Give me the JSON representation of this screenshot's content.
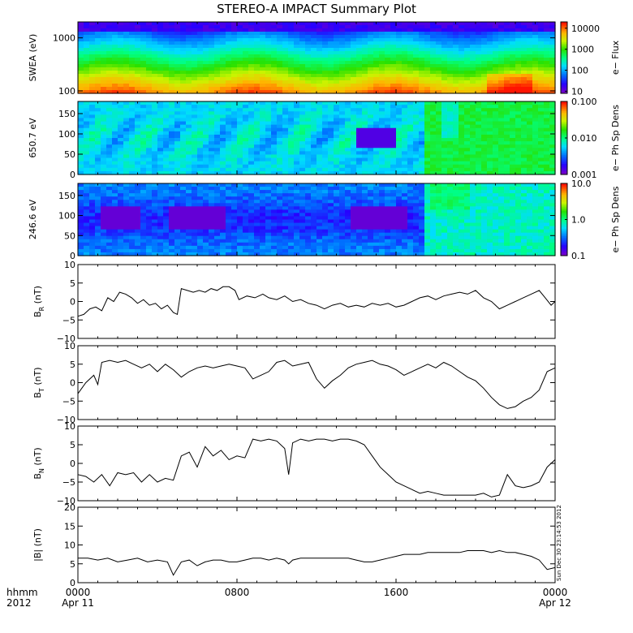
{
  "chart_data": {
    "type": "summary_plot",
    "title": "STEREO-A IMPACT Summary Plot",
    "x": {
      "label_line1": "hhmm",
      "label_line2": "2012",
      "range_hours": [
        0,
        24
      ],
      "ticks": [
        {
          "h": 0,
          "top": "0000",
          "bottom": "Apr 11"
        },
        {
          "h": 8,
          "top": "0800",
          "bottom": ""
        },
        {
          "h": 16,
          "top": "1600",
          "bottom": ""
        },
        {
          "h": 24,
          "top": "0000",
          "bottom": "Apr 12"
        }
      ]
    },
    "spectrograms": [
      {
        "id": "swea",
        "ylabel": "SWEA (eV)",
        "ylog": true,
        "yrange": [
          90,
          2000
        ],
        "yticks": [
          100,
          1000
        ],
        "ytick_labels": [
          "100",
          "1000"
        ],
        "colorbar_label": "e− Flux",
        "colorbar_ticks": [
          10,
          100,
          1000,
          10000
        ],
        "colorbar_tick_labels": [
          "10",
          "100",
          "1000",
          "10000"
        ],
        "colorbar_range_log10": [
          0.9,
          4.3
        ]
      },
      {
        "id": "pad650",
        "ylabel": "650.7 eV",
        "ylog": false,
        "yrange": [
          0,
          180
        ],
        "yticks": [
          0,
          50,
          100,
          150
        ],
        "ytick_labels": [
          "0",
          "50",
          "100",
          "150"
        ],
        "colorbar_label": "e− Ph Sp Dens",
        "colorbar_ticks": [
          0.001,
          0.01,
          0.1
        ],
        "colorbar_tick_labels": [
          "0.001",
          "0.010",
          "0.100"
        ],
        "colorbar_range_log10": [
          -3,
          -1
        ]
      },
      {
        "id": "pad246",
        "ylabel": "246.6 eV",
        "ylog": false,
        "yrange": [
          0,
          180
        ],
        "yticks": [
          0,
          50,
          100,
          150
        ],
        "ytick_labels": [
          "0",
          "50",
          "100",
          "150"
        ],
        "colorbar_label": "e− Ph Sp Dens",
        "colorbar_ticks": [
          0.1,
          1.0,
          10.0
        ],
        "colorbar_tick_labels": [
          "0.1",
          "1.0",
          "10.0"
        ],
        "colorbar_range_log10": [
          -1,
          1
        ]
      }
    ],
    "series": [
      {
        "id": "br",
        "ylabel_main": "B",
        "ylabel_sub": "R",
        "ylabel_unit": " (nT)",
        "yrange": [
          -10,
          10
        ],
        "yticks": [
          -10,
          -5,
          0,
          5,
          10
        ],
        "ytick_labels": [
          "−10",
          "−5",
          "0",
          "5",
          "10"
        ],
        "zero_line": false,
        "points": [
          [
            0,
            -4
          ],
          [
            0.3,
            -3.5
          ],
          [
            0.6,
            -2
          ],
          [
            0.9,
            -1.5
          ],
          [
            1.2,
            -2.5
          ],
          [
            1.5,
            1
          ],
          [
            1.8,
            0
          ],
          [
            2.1,
            2.5
          ],
          [
            2.4,
            2
          ],
          [
            2.7,
            1
          ],
          [
            3,
            -0.5
          ],
          [
            3.3,
            0.5
          ],
          [
            3.6,
            -1
          ],
          [
            3.9,
            -0.5
          ],
          [
            4.2,
            -2
          ],
          [
            4.5,
            -1
          ],
          [
            4.8,
            -3
          ],
          [
            5.0,
            -3.5
          ],
          [
            5.2,
            3.5
          ],
          [
            5.5,
            3
          ],
          [
            5.8,
            2.5
          ],
          [
            6.1,
            3
          ],
          [
            6.4,
            2.5
          ],
          [
            6.7,
            3.5
          ],
          [
            7.0,
            3
          ],
          [
            7.3,
            4
          ],
          [
            7.6,
            4
          ],
          [
            7.9,
            3
          ],
          [
            8.1,
            0.5
          ],
          [
            8.5,
            1.5
          ],
          [
            8.9,
            1
          ],
          [
            9.3,
            2
          ],
          [
            9.6,
            1
          ],
          [
            10.0,
            0.5
          ],
          [
            10.4,
            1.5
          ],
          [
            10.8,
            0
          ],
          [
            11.2,
            0.5
          ],
          [
            11.6,
            -0.5
          ],
          [
            12.0,
            -1
          ],
          [
            12.4,
            -2
          ],
          [
            12.8,
            -1
          ],
          [
            13.2,
            -0.5
          ],
          [
            13.6,
            -1.5
          ],
          [
            14.0,
            -1
          ],
          [
            14.4,
            -1.5
          ],
          [
            14.8,
            -0.5
          ],
          [
            15.2,
            -1
          ],
          [
            15.6,
            -0.5
          ],
          [
            16.0,
            -1.5
          ],
          [
            16.4,
            -1
          ],
          [
            16.8,
            0
          ],
          [
            17.2,
            1
          ],
          [
            17.6,
            1.5
          ],
          [
            18.0,
            0.5
          ],
          [
            18.4,
            1.5
          ],
          [
            18.8,
            2
          ],
          [
            19.2,
            2.5
          ],
          [
            19.6,
            2
          ],
          [
            20.0,
            3
          ],
          [
            20.4,
            1
          ],
          [
            20.8,
            0
          ],
          [
            21.2,
            -2
          ],
          [
            21.6,
            -1
          ],
          [
            22.0,
            0
          ],
          [
            22.4,
            1
          ],
          [
            22.8,
            2
          ],
          [
            23.2,
            3
          ],
          [
            23.5,
            1
          ],
          [
            23.8,
            -1
          ],
          [
            24.0,
            0
          ]
        ]
      },
      {
        "id": "bt",
        "ylabel_main": "B",
        "ylabel_sub": "T",
        "ylabel_unit": " (nT)",
        "yrange": [
          -10,
          10
        ],
        "yticks": [
          -10,
          -5,
          0,
          5,
          10
        ],
        "ytick_labels": [
          "−10",
          "−5",
          "0",
          "5",
          "10"
        ],
        "zero_line": false,
        "points": [
          [
            0,
            -3
          ],
          [
            0.4,
            0
          ],
          [
            0.8,
            2
          ],
          [
            1.0,
            -0.5
          ],
          [
            1.2,
            5.5
          ],
          [
            1.6,
            6
          ],
          [
            2.0,
            5.5
          ],
          [
            2.4,
            6
          ],
          [
            2.8,
            5
          ],
          [
            3.2,
            4
          ],
          [
            3.6,
            5
          ],
          [
            4.0,
            3
          ],
          [
            4.4,
            5
          ],
          [
            4.8,
            3.5
          ],
          [
            5.2,
            1.5
          ],
          [
            5.6,
            3
          ],
          [
            6.0,
            4
          ],
          [
            6.4,
            4.5
          ],
          [
            6.8,
            4
          ],
          [
            7.2,
            4.5
          ],
          [
            7.6,
            5
          ],
          [
            8.0,
            4.5
          ],
          [
            8.4,
            4
          ],
          [
            8.8,
            1
          ],
          [
            9.2,
            2
          ],
          [
            9.6,
            3
          ],
          [
            10.0,
            5.5
          ],
          [
            10.4,
            6
          ],
          [
            10.8,
            4.5
          ],
          [
            11.2,
            5
          ],
          [
            11.6,
            5.5
          ],
          [
            12.0,
            1
          ],
          [
            12.4,
            -1.5
          ],
          [
            12.8,
            0.5
          ],
          [
            13.2,
            2
          ],
          [
            13.6,
            4
          ],
          [
            14.0,
            5
          ],
          [
            14.4,
            5.5
          ],
          [
            14.8,
            6
          ],
          [
            15.2,
            5
          ],
          [
            15.6,
            4.5
          ],
          [
            16.0,
            3.5
          ],
          [
            16.4,
            2
          ],
          [
            16.8,
            3
          ],
          [
            17.2,
            4
          ],
          [
            17.6,
            5
          ],
          [
            18.0,
            4
          ],
          [
            18.4,
            5.5
          ],
          [
            18.8,
            4.5
          ],
          [
            19.2,
            3
          ],
          [
            19.6,
            1.5
          ],
          [
            20.0,
            0.5
          ],
          [
            20.4,
            -1.5
          ],
          [
            20.8,
            -4
          ],
          [
            21.2,
            -6
          ],
          [
            21.6,
            -7
          ],
          [
            22.0,
            -6.5
          ],
          [
            22.4,
            -5
          ],
          [
            22.8,
            -4
          ],
          [
            23.2,
            -2
          ],
          [
            23.6,
            3
          ],
          [
            24.0,
            4
          ]
        ]
      },
      {
        "id": "bn",
        "ylabel_main": "B",
        "ylabel_sub": "N",
        "ylabel_unit": " (nT)",
        "yrange": [
          -10,
          10
        ],
        "yticks": [
          -10,
          -5,
          0,
          5,
          10
        ],
        "ytick_labels": [
          "−10",
          "−5",
          "0",
          "5",
          "10"
        ],
        "zero_line": false,
        "points": [
          [
            0,
            -3
          ],
          [
            0.4,
            -3.5
          ],
          [
            0.8,
            -5
          ],
          [
            1.2,
            -3
          ],
          [
            1.6,
            -6
          ],
          [
            2.0,
            -2.5
          ],
          [
            2.4,
            -3
          ],
          [
            2.8,
            -2.5
          ],
          [
            3.2,
            -5
          ],
          [
            3.6,
            -3
          ],
          [
            4.0,
            -5
          ],
          [
            4.4,
            -4
          ],
          [
            4.8,
            -4.5
          ],
          [
            5.2,
            2
          ],
          [
            5.6,
            3
          ],
          [
            6.0,
            -1
          ],
          [
            6.4,
            4.5
          ],
          [
            6.8,
            2
          ],
          [
            7.2,
            3.5
          ],
          [
            7.6,
            1
          ],
          [
            8.0,
            2
          ],
          [
            8.4,
            1.5
          ],
          [
            8.8,
            6.5
          ],
          [
            9.2,
            6
          ],
          [
            9.6,
            6.5
          ],
          [
            10.0,
            6
          ],
          [
            10.4,
            4
          ],
          [
            10.6,
            -3
          ],
          [
            10.8,
            5.5
          ],
          [
            11.2,
            6.5
          ],
          [
            11.6,
            6
          ],
          [
            12.0,
            6.5
          ],
          [
            12.4,
            6.5
          ],
          [
            12.8,
            6
          ],
          [
            13.2,
            6.5
          ],
          [
            13.6,
            6.5
          ],
          [
            14.0,
            6
          ],
          [
            14.4,
            5
          ],
          [
            14.8,
            2
          ],
          [
            15.2,
            -1
          ],
          [
            15.6,
            -3
          ],
          [
            16.0,
            -5
          ],
          [
            16.4,
            -6
          ],
          [
            16.8,
            -7
          ],
          [
            17.2,
            -8
          ],
          [
            17.6,
            -7.5
          ],
          [
            18.0,
            -8
          ],
          [
            18.4,
            -8.5
          ],
          [
            18.8,
            -8.5
          ],
          [
            19.2,
            -8.5
          ],
          [
            19.6,
            -8.5
          ],
          [
            20.0,
            -8.5
          ],
          [
            20.4,
            -8
          ],
          [
            20.8,
            -9
          ],
          [
            21.2,
            -8.5
          ],
          [
            21.6,
            -3
          ],
          [
            22.0,
            -6
          ],
          [
            22.4,
            -6.5
          ],
          [
            22.8,
            -6
          ],
          [
            23.2,
            -5
          ],
          [
            23.6,
            -1
          ],
          [
            24.0,
            1
          ]
        ]
      },
      {
        "id": "btot",
        "ylabel_main": "|B|",
        "ylabel_sub": "",
        "ylabel_unit": " (nT)",
        "yrange": [
          0,
          20
        ],
        "yticks": [
          0,
          5,
          10,
          15,
          20
        ],
        "ytick_labels": [
          "0",
          "5",
          "10",
          "15",
          "20"
        ],
        "zero_line": false,
        "points": [
          [
            0,
            6.5
          ],
          [
            0.5,
            6.5
          ],
          [
            1.0,
            6
          ],
          [
            1.5,
            6.5
          ],
          [
            2.0,
            5.5
          ],
          [
            2.5,
            6
          ],
          [
            3.0,
            6.5
          ],
          [
            3.5,
            5.5
          ],
          [
            4.0,
            6
          ],
          [
            4.5,
            5.5
          ],
          [
            4.8,
            2
          ],
          [
            5.2,
            5.5
          ],
          [
            5.6,
            6
          ],
          [
            6.0,
            4.5
          ],
          [
            6.4,
            5.5
          ],
          [
            6.8,
            6
          ],
          [
            7.2,
            6
          ],
          [
            7.6,
            5.5
          ],
          [
            8.0,
            5.5
          ],
          [
            8.4,
            6
          ],
          [
            8.8,
            6.5
          ],
          [
            9.2,
            6.5
          ],
          [
            9.6,
            6
          ],
          [
            10.0,
            6.5
          ],
          [
            10.4,
            6
          ],
          [
            10.6,
            5
          ],
          [
            10.8,
            6
          ],
          [
            11.2,
            6.5
          ],
          [
            11.6,
            6.5
          ],
          [
            12.0,
            6.5
          ],
          [
            12.4,
            6.5
          ],
          [
            12.8,
            6.5
          ],
          [
            13.2,
            6.5
          ],
          [
            13.6,
            6.5
          ],
          [
            14.0,
            6
          ],
          [
            14.4,
            5.5
          ],
          [
            14.8,
            5.5
          ],
          [
            15.2,
            6
          ],
          [
            15.6,
            6.5
          ],
          [
            16.0,
            7
          ],
          [
            16.4,
            7.5
          ],
          [
            16.8,
            7.5
          ],
          [
            17.2,
            7.5
          ],
          [
            17.6,
            8
          ],
          [
            18.0,
            8
          ],
          [
            18.4,
            8
          ],
          [
            18.8,
            8
          ],
          [
            19.2,
            8
          ],
          [
            19.6,
            8.5
          ],
          [
            20.0,
            8.5
          ],
          [
            20.4,
            8.5
          ],
          [
            20.8,
            8
          ],
          [
            21.2,
            8.5
          ],
          [
            21.6,
            8
          ],
          [
            22.0,
            8
          ],
          [
            22.4,
            7.5
          ],
          [
            22.8,
            7
          ],
          [
            23.2,
            6
          ],
          [
            23.6,
            3.5
          ],
          [
            24.0,
            4
          ]
        ]
      }
    ],
    "side_annotation": "Sun Dec 30 23:14:53 2012"
  }
}
